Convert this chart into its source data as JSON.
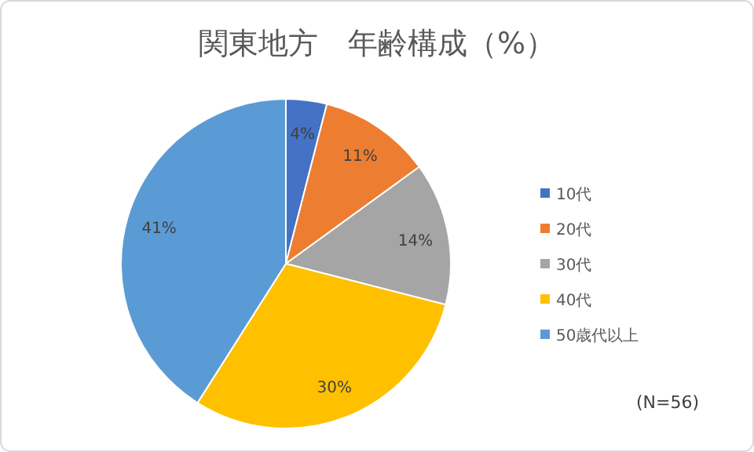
{
  "chart_data": {
    "type": "pie",
    "title": "関東地方　年齢構成（%）",
    "categories": [
      "10代",
      "20代",
      "30代",
      "40代",
      "50歳代以上"
    ],
    "values": [
      4,
      11,
      14,
      30,
      41
    ],
    "colors": [
      "#4472c4",
      "#ed7d31",
      "#a5a5a5",
      "#ffc000",
      "#5b9bd5"
    ],
    "value_labels": [
      "4%",
      "11%",
      "14%",
      "30%",
      "41%"
    ],
    "legend": "right",
    "annotations": [
      "(N=56)"
    ]
  }
}
